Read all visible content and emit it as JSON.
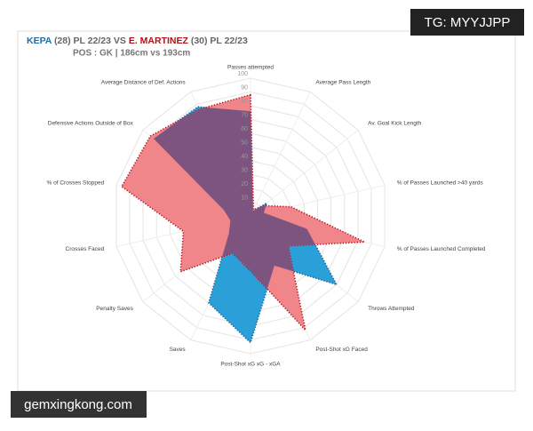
{
  "chart_data": {
    "type": "radar",
    "title_separator": "VS",
    "subtitle": "POS : GK | 186cm vs 193cm",
    "categories": [
      "Passes attempted",
      "Average Pass Length",
      "Av. Goal Kick Length",
      "% of Passes Launched >40 yards",
      "% of Passes Launched Completed",
      "Throws Attempted",
      "Post-Shot xG Faced",
      "Post-Shot xG xG - xGA",
      "Saves",
      "Penalty Saves",
      "Crosses Faced",
      "% of Crosses Stopped",
      "Defensive Actions  Outside of Box",
      "Average Distance of Def. Actions"
    ],
    "rlim": [
      0,
      100
    ],
    "rticks": [
      10,
      20,
      30,
      40,
      50,
      60,
      70,
      80,
      90,
      100
    ],
    "series": [
      {
        "name": "KEPA",
        "detail": "(28) PL 22/23",
        "color": "#2b9fd8",
        "edge": "#1c5f94",
        "values": [
          76,
          4,
          15,
          10,
          42,
          80,
          40,
          92,
          70,
          20,
          15,
          20,
          90,
          88
        ]
      },
      {
        "name": "E. MARTINEZ",
        "detail": "(30) PL 22/23",
        "color": "#f0858a",
        "edge": "#b0101a",
        "values": [
          88,
          5,
          12,
          30,
          85,
          35,
          92,
          40,
          30,
          65,
          50,
          96,
          93,
          86
        ]
      }
    ],
    "overlap_color": "#7d5480"
  },
  "watermarks": {
    "top": "TG: MYYJJPP",
    "bottom": "gemxingkong.com"
  }
}
